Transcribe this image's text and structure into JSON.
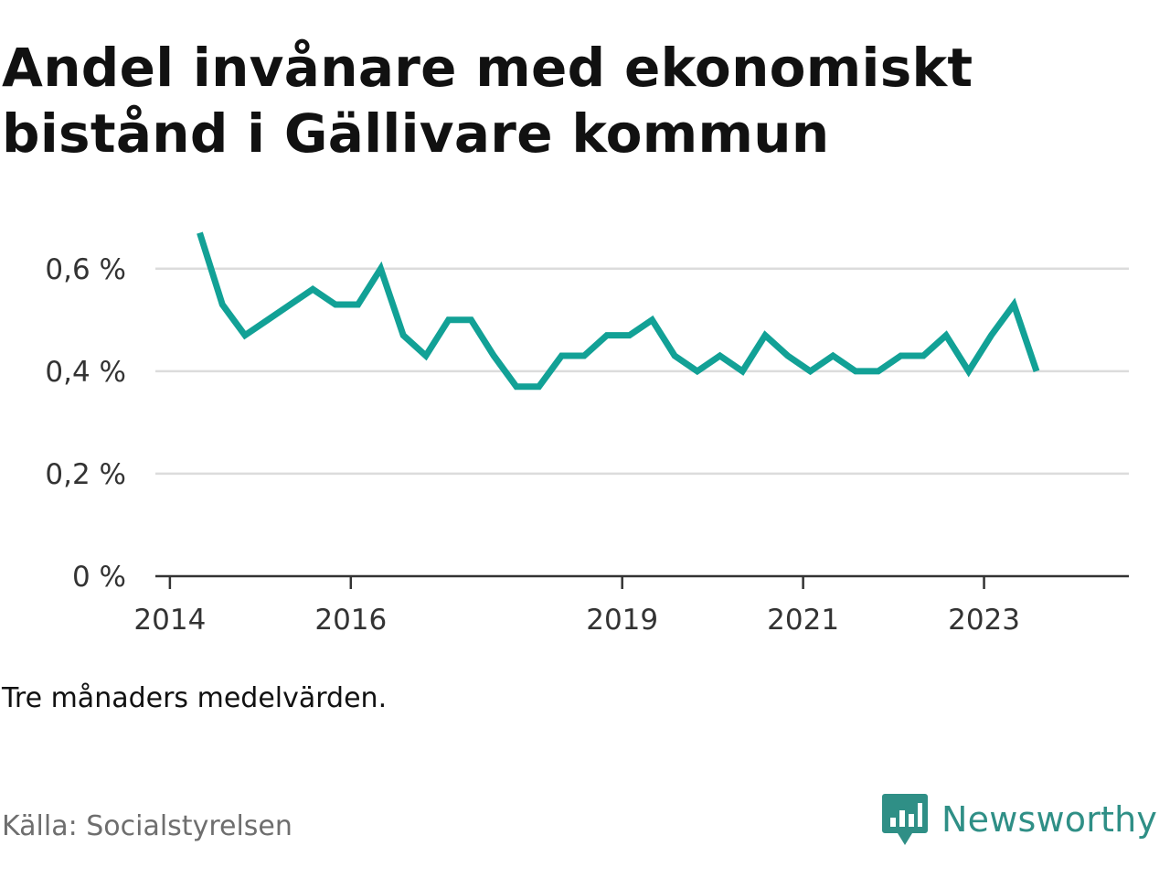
{
  "title": "Andel invånare med ekonomiskt bistånd i Gällivare kommun",
  "note": "Tre månaders medelvärden.",
  "source": "Källa: Socialstyrelsen",
  "brand": {
    "name": "Newsworthy",
    "icon": "bar-chart-speech-bubble-icon"
  },
  "colors": {
    "line": "#12a196",
    "grid": "#dcdcdc",
    "axis": "#333333",
    "brand": "#2f8f86"
  },
  "chart_data": {
    "type": "line",
    "title": "Andel invånare med ekonomiskt bistånd i Gällivare kommun",
    "xlabel": "",
    "ylabel": "",
    "x_ticks": [
      {
        "label": "2014",
        "value": 2014.0
      },
      {
        "label": "2016",
        "value": 2016.0
      },
      {
        "label": "2019",
        "value": 2019.0
      },
      {
        "label": "2021",
        "value": 2021.0
      },
      {
        "label": "2023",
        "value": 2023.0
      }
    ],
    "y_ticks": [
      {
        "label": "0 %",
        "value": 0
      },
      {
        "label": "0,2 %",
        "value": 0.2
      },
      {
        "label": "0,4 %",
        "value": 0.4
      },
      {
        "label": "0,6 %",
        "value": 0.6
      }
    ],
    "xlim": [
      2013.88,
      2024.5
    ],
    "ylim": [
      0,
      0.6
    ],
    "grid": true,
    "series": [
      {
        "x": [
          2014.33,
          2014.58,
          2014.83,
          2015.08,
          2015.33,
          2015.58,
          2015.83,
          2016.08,
          2016.33,
          2016.58,
          2016.83,
          2017.08,
          2017.33,
          2017.58,
          2017.83,
          2018.08,
          2018.33,
          2018.58,
          2018.83,
          2019.08,
          2019.33,
          2019.58,
          2019.83,
          2020.08,
          2020.33,
          2020.58,
          2020.83,
          2021.08,
          2021.33,
          2021.58,
          2021.83,
          2022.08,
          2022.33,
          2022.58,
          2022.83,
          2023.08,
          2023.33,
          2023.58
        ],
        "values": [
          0.67,
          0.53,
          0.47,
          0.5,
          0.53,
          0.56,
          0.53,
          0.53,
          0.6,
          0.47,
          0.43,
          0.5,
          0.5,
          0.43,
          0.37,
          0.37,
          0.43,
          0.43,
          0.47,
          0.47,
          0.5,
          0.43,
          0.4,
          0.43,
          0.4,
          0.47,
          0.43,
          0.4,
          0.43,
          0.4,
          0.4,
          0.43,
          0.43,
          0.47,
          0.4,
          0.47,
          0.53,
          0.4
        ]
      }
    ]
  }
}
